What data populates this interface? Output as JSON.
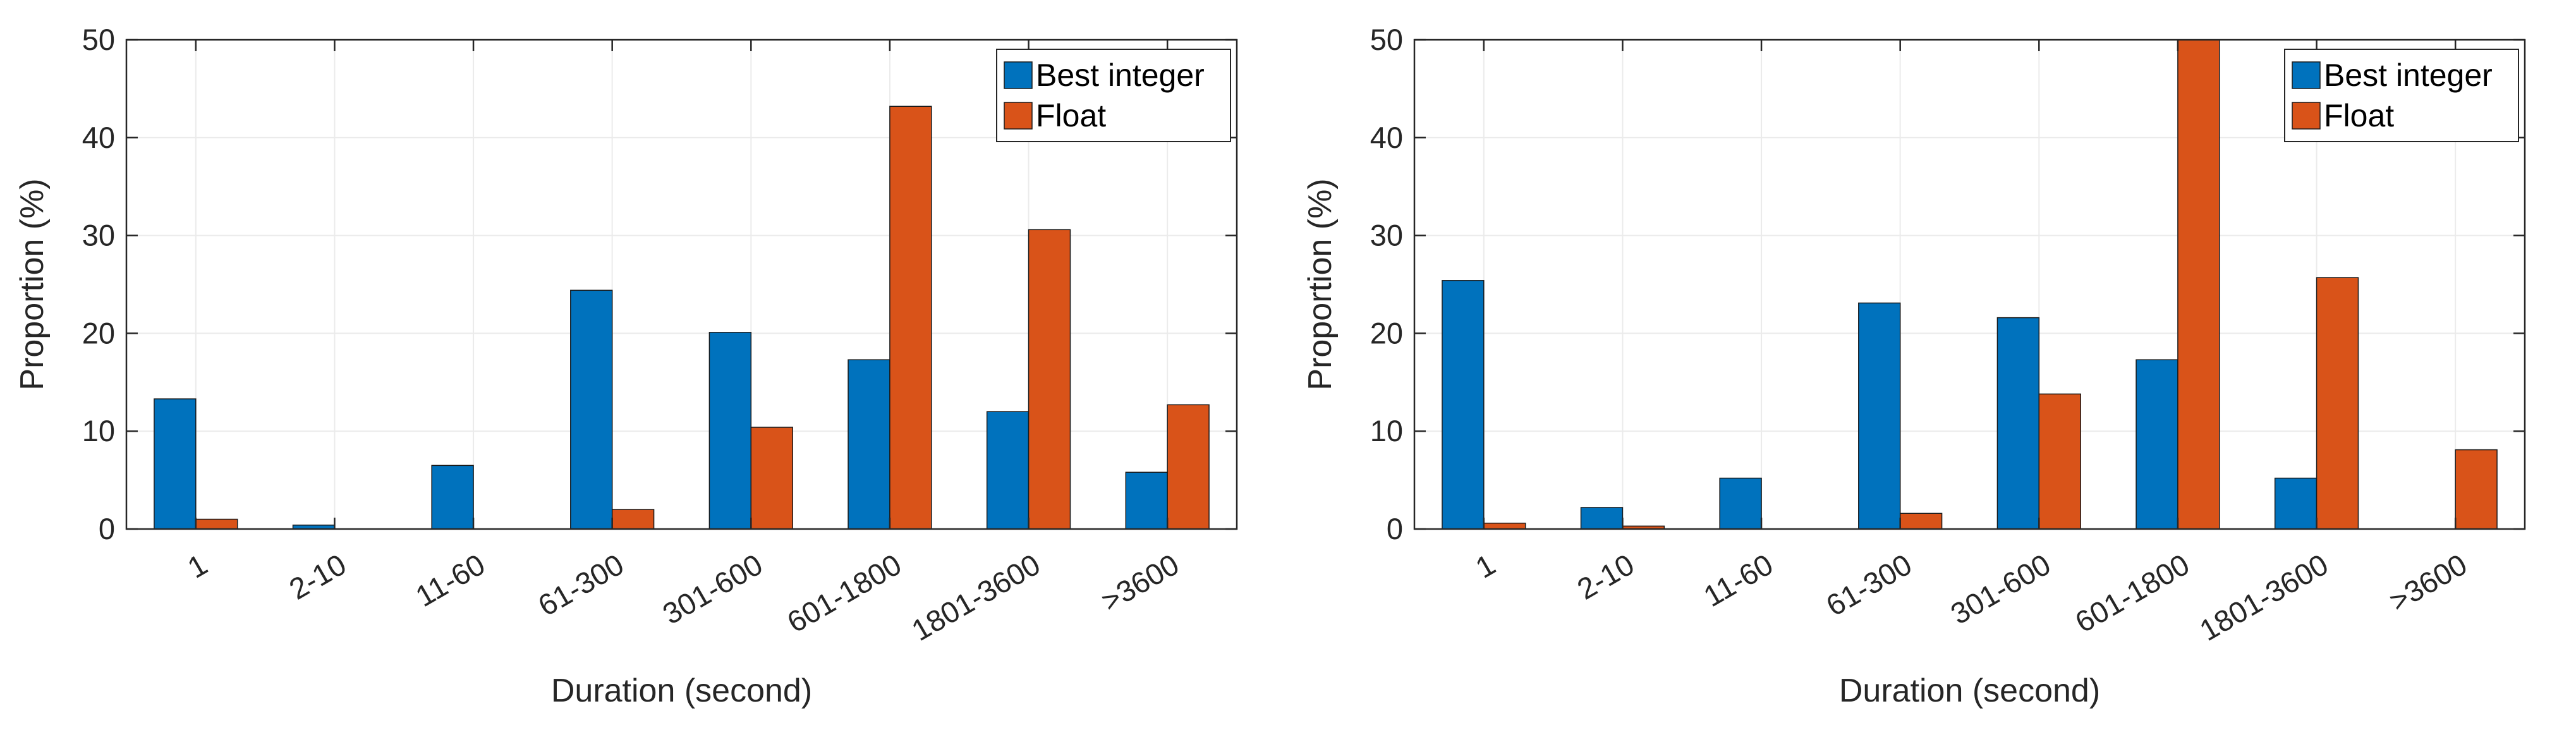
{
  "chart_data": [
    {
      "type": "bar",
      "categories": [
        "1",
        "2-10",
        "11-60",
        "61-300",
        "301-600",
        "601-1800",
        "1801-3600",
        ">3600"
      ],
      "series": [
        {
          "name": "Best integer",
          "color": "#0072BD",
          "values": [
            13.3,
            0.4,
            6.5,
            24.4,
            20.1,
            17.3,
            12.0,
            5.8
          ]
        },
        {
          "name": "Float",
          "color": "#D95319",
          "values": [
            1.0,
            0.0,
            0.0,
            2.0,
            10.4,
            43.2,
            30.6,
            12.7
          ]
        }
      ],
      "xlabel": "Duration (second)",
      "ylabel": "Proportion (%)",
      "ylim": [
        0,
        50
      ],
      "yticks": [
        "0",
        "10",
        "20",
        "30",
        "40",
        "50"
      ],
      "grid": true,
      "legend_position": "top-right"
    },
    {
      "type": "bar",
      "categories": [
        "1",
        "2-10",
        "11-60",
        "61-300",
        "301-600",
        "601-1800",
        "1801-3600",
        ">3600"
      ],
      "series": [
        {
          "name": "Best integer",
          "color": "#0072BD",
          "values": [
            25.4,
            2.2,
            5.2,
            23.1,
            21.6,
            17.3,
            5.2,
            0.0
          ]
        },
        {
          "name": "Float",
          "color": "#D95319",
          "values": [
            0.6,
            0.3,
            0.0,
            1.6,
            13.8,
            50.0,
            25.7,
            8.1
          ]
        }
      ],
      "xlabel": "Duration (second)",
      "ylabel": "Proportion (%)",
      "ylim": [
        0,
        50
      ],
      "yticks": [
        "0",
        "10",
        "20",
        "30",
        "40",
        "50"
      ],
      "grid": true,
      "legend_position": "top-right"
    }
  ]
}
